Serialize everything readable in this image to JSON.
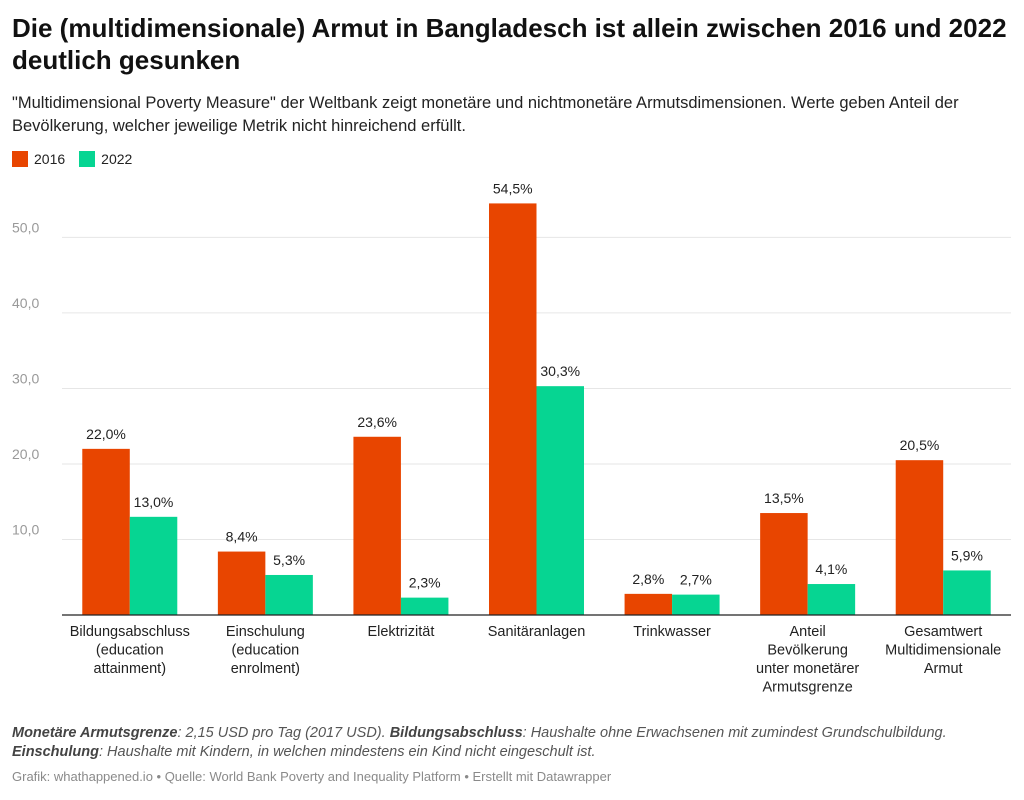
{
  "title": "Die (multidimensionale) Armut in Bangladesch ist allein zwischen 2016 und 2022 deutlich gesunken",
  "subtitle": "\"Multidimensional Poverty Measure\" der Weltbank zeigt monetäre und nichtmonetäre Armutsdimensionen. Werte geben Anteil der Bevölkerung, welcher jeweilige Metrik nicht hinreichend erfüllt.",
  "colors": {
    "2016": "#e84500",
    "2022": "#06d592",
    "grid": "#e6e6e6",
    "axis": "#222222",
    "tick_label": "#999999"
  },
  "chart_data": {
    "type": "bar",
    "categories": [
      [
        "Bildungsabschluss",
        "(education",
        "attainment)"
      ],
      [
        "Einschulung",
        "(education",
        "enrolment)"
      ],
      [
        "Elektrizität"
      ],
      [
        "Sanitäranlagen"
      ],
      [
        "Trinkwasser"
      ],
      [
        "Anteil",
        "Bevölkerung",
        "unter monetärer",
        "Armutsgrenze"
      ],
      [
        "Gesamtwert",
        "Multidimensionale",
        "Armut"
      ]
    ],
    "series": [
      {
        "name": "2016",
        "values": [
          22.0,
          8.4,
          23.6,
          54.5,
          2.8,
          13.5,
          20.5
        ],
        "labels": [
          "22,0%",
          "8,4%",
          "23,6%",
          "54,5%",
          "2,8%",
          "13,5%",
          "20,5%"
        ]
      },
      {
        "name": "2022",
        "values": [
          13.0,
          5.3,
          2.3,
          30.3,
          2.7,
          4.1,
          5.9
        ],
        "labels": [
          "13,0%",
          "5,3%",
          "2,3%",
          "30,3%",
          "2,7%",
          "4,1%",
          "5,9%"
        ]
      }
    ],
    "y_ticks": [
      10,
      20,
      30,
      40,
      50
    ],
    "y_tick_labels": [
      "10,0",
      "20,0",
      "30,0",
      "40,0",
      "50,0"
    ],
    "ylim": [
      0,
      57.6
    ],
    "grid": true,
    "legend": "top-left"
  },
  "notes": [
    {
      "term": "Monetäre Armutsgrenze",
      "text": ": 2,15 USD pro Tag (2017 USD). "
    },
    {
      "term": "Bildungsabschluss",
      "text": ": Haushalte ohne Erwachsenen mit zumindest Grundschulbildung."
    },
    {
      "term": "Einschulung",
      "text": ": Haushalte mit Kindern, in welchen mindestens ein Kind nicht eingeschult ist."
    }
  ],
  "credit": "Grafik: whathappened.io • Quelle: World Bank Poverty and Inequality Platform • Erstellt mit Datawrapper"
}
